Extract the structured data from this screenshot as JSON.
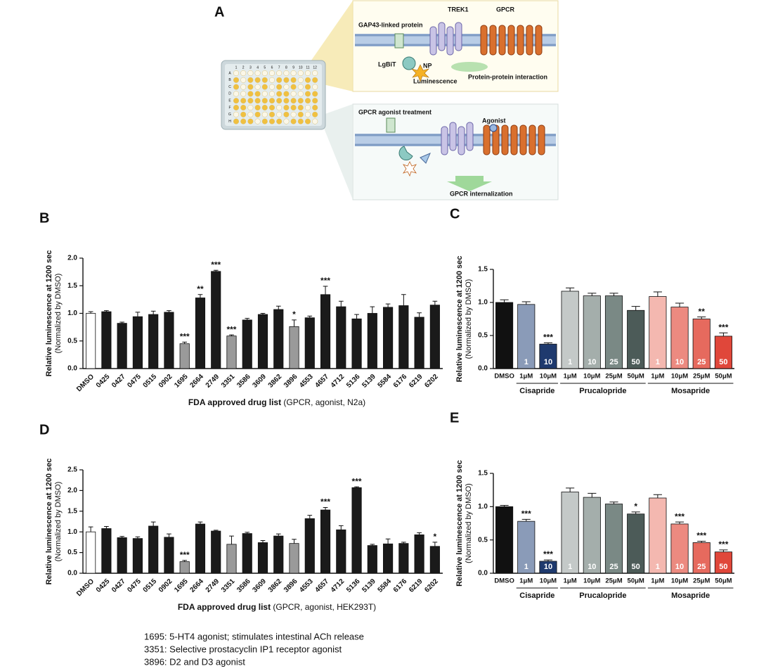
{
  "diagram": {
    "panel": "A",
    "plate": {
      "columns": [
        "1",
        "2",
        "3",
        "4",
        "5",
        "6",
        "7",
        "8",
        "9",
        "10",
        "11",
        "12"
      ],
      "rows": [
        "A",
        "B",
        "C",
        "D",
        "E",
        "F",
        "G",
        "H"
      ]
    },
    "top_box": {
      "gap43": "GAP43-linked protein",
      "trek1": "TREK1",
      "gpcr": "GPCR",
      "lgbit": "LgBiT",
      "np": "NP",
      "luminescence": "Luminescence",
      "interaction": "Protein-protein interaction"
    },
    "bottom_box": {
      "treatment": "GPCR agonist treatment",
      "agonist": "Agonist",
      "internalization": "GPCR internalization"
    }
  },
  "chart_data": [
    {
      "type": "bar",
      "panel": "B",
      "ylabel": "Relative luminescence at 1200 sec",
      "ylabel_sub": "(Normalized by DMSO)",
      "xlabel": "FDA approved drug list",
      "xlabel_detail": "(GPCR, agonist, N2a)",
      "categories": [
        "DMSO",
        "0425",
        "0427",
        "0475",
        "0515",
        "0902",
        "1695",
        "2664",
        "2749",
        "3351",
        "3586",
        "3609",
        "3862",
        "3896",
        "4553",
        "4657",
        "4712",
        "5136",
        "5139",
        "5584",
        "6176",
        "6219",
        "6202"
      ],
      "values": [
        1.0,
        1.03,
        0.82,
        0.94,
        0.98,
        1.02,
        0.45,
        1.28,
        1.76,
        0.59,
        0.88,
        0.98,
        1.07,
        0.76,
        0.92,
        1.34,
        1.12,
        0.9,
        1.0,
        1.11,
        1.14,
        0.93,
        1.15
      ],
      "errors": [
        0.03,
        0.02,
        0.02,
        0.08,
        0.06,
        0.03,
        0.03,
        0.06,
        0.02,
        0.02,
        0.03,
        0.02,
        0.06,
        0.12,
        0.03,
        0.15,
        0.1,
        0.08,
        0.12,
        0.06,
        0.2,
        0.08,
        0.07
      ],
      "colors": [
        "#ffffff",
        "#1a1a1a",
        "#1a1a1a",
        "#1a1a1a",
        "#1a1a1a",
        "#1a1a1a",
        "#9a9a9a",
        "#1a1a1a",
        "#1a1a1a",
        "#9a9a9a",
        "#1a1a1a",
        "#1a1a1a",
        "#1a1a1a",
        "#9a9a9a",
        "#1a1a1a",
        "#1a1a1a",
        "#1a1a1a",
        "#1a1a1a",
        "#1a1a1a",
        "#1a1a1a",
        "#1a1a1a",
        "#1a1a1a",
        "#1a1a1a"
      ],
      "significance": [
        null,
        null,
        null,
        null,
        null,
        null,
        "***",
        "**",
        "***",
        "***",
        null,
        null,
        null,
        "*",
        null,
        "***",
        null,
        null,
        null,
        null,
        null,
        null,
        null
      ],
      "ylim": [
        0,
        2
      ],
      "yticks": [
        {
          "value": 0,
          "label": "0.0"
        },
        0.5,
        {
          "value": 1,
          "label": "1.0"
        },
        1.5,
        {
          "value": 2,
          "label": "2.0"
        }
      ]
    },
    {
      "type": "bar",
      "panel": "C",
      "ylabel": "Relative luminescence at 1200 sec",
      "ylabel_sub": "(Normalized by DMSO)",
      "categories": [
        "DMSO",
        "1μM",
        "10μM",
        "1μM",
        "10μM",
        "25μM",
        "50μM",
        "1μM",
        "10μM",
        "25μM",
        "50μM"
      ],
      "bar_labels": [
        null,
        "1",
        "10",
        "1",
        "10",
        "25",
        "50",
        "1",
        "10",
        "25",
        "50"
      ],
      "values": [
        1.0,
        0.97,
        0.37,
        1.17,
        1.1,
        1.1,
        0.88,
        1.09,
        0.93,
        0.75,
        0.49
      ],
      "errors": [
        0.04,
        0.04,
        0.02,
        0.05,
        0.04,
        0.04,
        0.06,
        0.07,
        0.06,
        0.03,
        0.05
      ],
      "colors": [
        "#111111",
        "#8a9bb8",
        "#1f3a6e",
        "#c4c9c8",
        "#a4aeab",
        "#7a8985",
        "#4c5b58",
        "#f4b8b0",
        "#ec8a80",
        "#e66a5e",
        "#e0473a"
      ],
      "significance": [
        null,
        null,
        "***",
        null,
        null,
        null,
        null,
        null,
        null,
        "**",
        "***"
      ],
      "groups": [
        {
          "label": "Cisapride",
          "span": [
            1,
            2
          ]
        },
        {
          "label": "Prucalopride",
          "span": [
            3,
            6
          ]
        },
        {
          "label": "Mosapride",
          "span": [
            7,
            10
          ]
        }
      ],
      "ylim": [
        0,
        1.5
      ],
      "yticks": [
        {
          "value": 0,
          "label": "0.0"
        },
        0.5,
        {
          "value": 1,
          "label": "1.0"
        },
        1.5
      ]
    },
    {
      "type": "bar",
      "panel": "D",
      "ylabel": "Relative luminescence at 1200 sec",
      "ylabel_sub": "(Normalized by DMSO)",
      "xlabel": "FDA approved drug list",
      "xlabel_detail": "(GPCR, agonist, HEK293T)",
      "categories": [
        "DMSO",
        "0425",
        "0427",
        "0475",
        "0515",
        "0902",
        "1695",
        "2664",
        "2749",
        "3351",
        "3586",
        "3609",
        "3862",
        "3896",
        "4553",
        "4657",
        "4712",
        "5136",
        "5139",
        "5584",
        "6176",
        "6219",
        "6202"
      ],
      "values": [
        1.0,
        1.08,
        0.86,
        0.84,
        1.14,
        0.87,
        0.28,
        1.19,
        1.02,
        0.7,
        0.96,
        0.74,
        0.9,
        0.72,
        1.32,
        1.53,
        1.05,
        2.07,
        0.67,
        0.71,
        0.72,
        0.93,
        0.65
      ],
      "errors": [
        0.12,
        0.05,
        0.03,
        0.04,
        0.1,
        0.08,
        0.03,
        0.05,
        0.02,
        0.2,
        0.03,
        0.05,
        0.05,
        0.1,
        0.08,
        0.06,
        0.1,
        0.02,
        0.03,
        0.12,
        0.03,
        0.05,
        0.1
      ],
      "colors": [
        "#ffffff",
        "#1a1a1a",
        "#1a1a1a",
        "#1a1a1a",
        "#1a1a1a",
        "#1a1a1a",
        "#9a9a9a",
        "#1a1a1a",
        "#1a1a1a",
        "#9a9a9a",
        "#1a1a1a",
        "#1a1a1a",
        "#1a1a1a",
        "#9a9a9a",
        "#1a1a1a",
        "#1a1a1a",
        "#1a1a1a",
        "#1a1a1a",
        "#1a1a1a",
        "#1a1a1a",
        "#1a1a1a",
        "#1a1a1a",
        "#1a1a1a"
      ],
      "significance": [
        null,
        null,
        null,
        null,
        null,
        null,
        "***",
        null,
        null,
        null,
        null,
        null,
        null,
        null,
        null,
        "***",
        null,
        "***",
        null,
        null,
        null,
        null,
        "*"
      ],
      "ylim": [
        0,
        2.5
      ],
      "yticks": [
        {
          "value": 0,
          "label": "0.0"
        },
        0.5,
        {
          "value": 1,
          "label": "1.0"
        },
        1.5,
        {
          "value": 2,
          "label": "2.0"
        },
        2.5
      ]
    },
    {
      "type": "bar",
      "panel": "E",
      "ylabel": "Relative luminescence at 1200 sec",
      "ylabel_sub": "(Normalized by DMSO)",
      "categories": [
        "DMSO",
        "1μM",
        "10μM",
        "1μM",
        "10μM",
        "25μM",
        "50μM",
        "1μM",
        "10μM",
        "25μM",
        "50μM"
      ],
      "bar_labels": [
        null,
        "1",
        "10",
        "1",
        "10",
        "25",
        "50",
        "1",
        "10",
        "25",
        "50"
      ],
      "values": [
        1.0,
        0.78,
        0.18,
        1.22,
        1.14,
        1.04,
        0.89,
        1.13,
        0.74,
        0.46,
        0.32
      ],
      "errors": [
        0.02,
        0.03,
        0.02,
        0.06,
        0.06,
        0.03,
        0.03,
        0.05,
        0.03,
        0.02,
        0.03
      ],
      "colors": [
        "#111111",
        "#8a9bb8",
        "#1f3a6e",
        "#c4c9c8",
        "#a4aeab",
        "#7a8985",
        "#4c5b58",
        "#f4b8b0",
        "#ec8a80",
        "#e66a5e",
        "#e0473a"
      ],
      "significance": [
        null,
        "***",
        "***",
        null,
        null,
        null,
        "*",
        null,
        "***",
        "***",
        "***"
      ],
      "groups": [
        {
          "label": "Cisapride",
          "span": [
            1,
            2
          ]
        },
        {
          "label": "Prucalopride",
          "span": [
            3,
            6
          ]
        },
        {
          "label": "Mosapride",
          "span": [
            7,
            10
          ]
        }
      ],
      "ylim": [
        0,
        1.5
      ],
      "yticks": [
        {
          "value": 0,
          "label": "0.0"
        },
        0.5,
        {
          "value": 1,
          "label": "1.0"
        },
        1.5
      ]
    }
  ],
  "notes": [
    "1695: 5-HT4 agonist; stimulates intestinal ACh release",
    "3351: Selective prostacyclin IP1 receptor agonist",
    "3896: D2 and D3 agonist"
  ]
}
